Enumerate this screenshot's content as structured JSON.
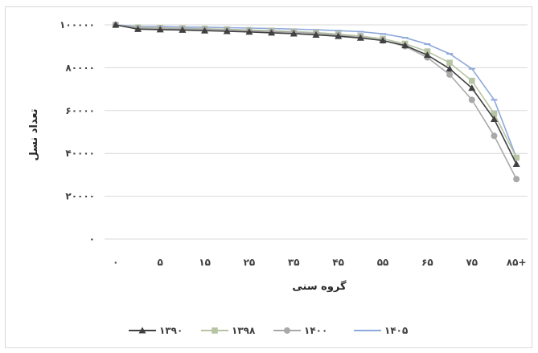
{
  "chart_data": {
    "type": "line",
    "xlabel": "گروه سنی",
    "ylabel": "تعداد نسل",
    "x_categories": [
      "۰",
      "",
      "۵",
      "",
      "۱۵",
      "",
      "۲۵",
      "",
      "۳۵",
      "",
      "۴۵",
      "",
      "۵۵",
      "",
      "۶۵",
      "",
      "۷۵",
      "",
      "۸۵+"
    ],
    "ylim": [
      0,
      100000
    ],
    "y_ticks": [
      0,
      20000,
      40000,
      60000,
      80000,
      100000
    ],
    "y_tick_labels": [
      "۰",
      "۲۰۰۰۰",
      "۴۰۰۰۰",
      "۶۰۰۰۰",
      "۸۰۰۰۰",
      "۱۰۰۰۰۰"
    ],
    "grid": true,
    "legend_position": "bottom",
    "series": [
      {
        "name": "۱۳۹۰",
        "color": "#404040",
        "marker": "triangle",
        "values": [
          100000,
          98000,
          97800,
          97600,
          97300,
          97000,
          96700,
          96300,
          95900,
          95300,
          94700,
          93900,
          92700,
          90400,
          85900,
          79500,
          70500,
          56000,
          35000
        ]
      },
      {
        "name": "۱۳۹۸",
        "color": "#b7c4a4",
        "marker": "square",
        "values": [
          100000,
          98800,
          98600,
          98400,
          98200,
          97900,
          97600,
          97300,
          96900,
          96400,
          95700,
          94800,
          93500,
          91200,
          87600,
          82300,
          73900,
          58600,
          38000
        ]
      },
      {
        "name": "۱۴۰۰",
        "color": "#a9a9a9",
        "marker": "circle",
        "values": [
          100000,
          98500,
          98300,
          98100,
          97900,
          97600,
          97300,
          96900,
          96500,
          95900,
          95200,
          94200,
          92700,
          90000,
          84800,
          76800,
          65000,
          48200,
          28000
        ]
      },
      {
        "name": "۱۴۰۵",
        "color": "#8ea9db",
        "marker": "dash",
        "values": [
          100000,
          99300,
          99200,
          99000,
          98900,
          98700,
          98500,
          98300,
          98000,
          97700,
          97300,
          96800,
          95800,
          94000,
          91000,
          86500,
          79500,
          65000,
          38000
        ]
      }
    ]
  }
}
